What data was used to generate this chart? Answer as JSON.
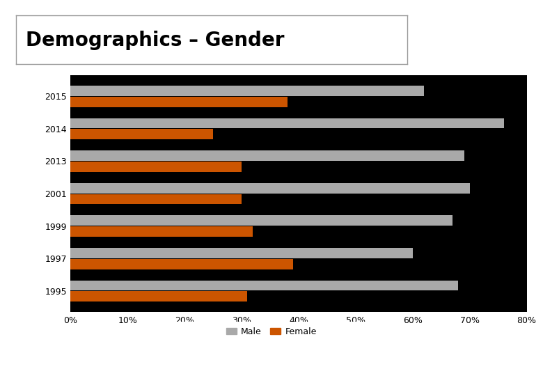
{
  "title": "Demographics – Gender",
  "categories": [
    "2015",
    "2014",
    "2013",
    "2001",
    "1999",
    "1997",
    "1995"
  ],
  "male_values": [
    62,
    76,
    69,
    70,
    67,
    60,
    68
  ],
  "female_values": [
    38,
    25,
    30,
    30,
    32,
    39,
    31
  ],
  "male_color": "#A9A9A9",
  "female_color": "#CC5500",
  "background_color": "#000000",
  "outer_bg_color": "#ffffff",
  "title_bg_color": "#ffffff",
  "text_color": "#000000",
  "title_text_color": "#000000",
  "xlim": [
    0,
    80
  ],
  "xtick_labels": [
    "0%",
    "10%",
    "20%",
    "30%",
    "40%",
    "50%",
    "60%",
    "70%",
    "80%"
  ],
  "xtick_values": [
    0,
    10,
    20,
    30,
    40,
    50,
    60,
    70,
    80
  ],
  "legend_labels": [
    "Male",
    "Female"
  ],
  "bar_height": 0.32,
  "title_fontsize": 20,
  "tick_fontsize": 9,
  "ylabel_fontsize": 9
}
